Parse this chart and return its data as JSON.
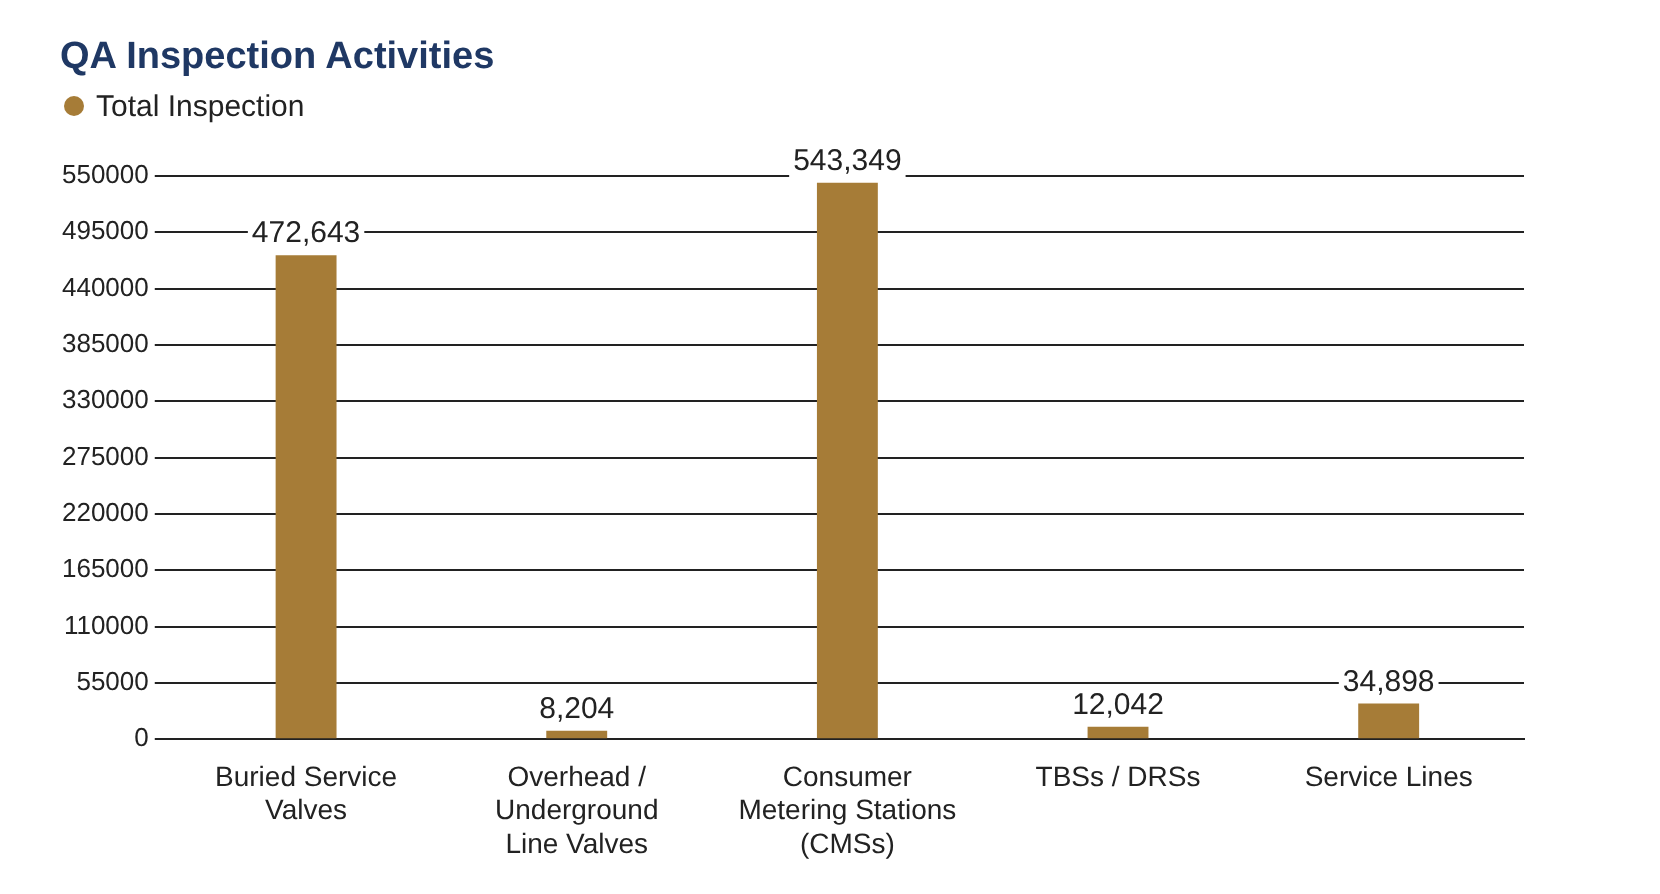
{
  "chart_data": {
    "type": "bar",
    "title": "QA Inspection Activities",
    "categories": [
      "Buried Service\nValves",
      "Overhead /\nUnderground\nLine Valves",
      "Consumer\nMetering Stations\n(CMSs)",
      "TBSs / DRSs",
      "Service Lines"
    ],
    "series": [
      {
        "name": "Total Inspection",
        "color": "#a67c37",
        "values": [
          472643,
          8204,
          543349,
          12042,
          34898
        ],
        "value_labels": [
          "472,643",
          "8,204",
          "543,349",
          "12,042",
          "34,898"
        ]
      }
    ],
    "ylim": [
      0,
      550000
    ],
    "yticks": [
      0,
      55000,
      110000,
      165000,
      220000,
      275000,
      330000,
      385000,
      440000,
      495000,
      550000
    ],
    "grid": "y",
    "legend": "top left"
  }
}
